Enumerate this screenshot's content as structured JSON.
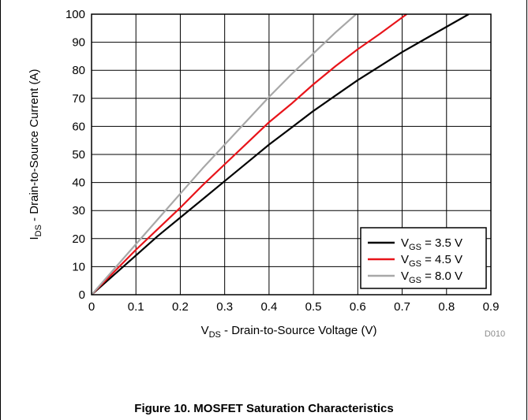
{
  "chart_data": {
    "type": "line",
    "xlabel": {
      "main": "V",
      "sub": "DS",
      "rest": " - Drain-to-Source Voltage (V)"
    },
    "ylabel": {
      "main": "I",
      "sub": "DS",
      "rest": " - Drain-to-Source Current (A)"
    },
    "xlim": [
      0,
      0.9
    ],
    "ylim": [
      0,
      100
    ],
    "xticks": [
      0,
      0.1,
      0.2,
      0.3,
      0.4,
      0.5,
      0.6,
      0.7,
      0.8,
      0.9
    ],
    "xtick_labels": [
      "0",
      "0.1",
      "0.2",
      "0.3",
      "0.4",
      "0.5",
      "0.6",
      "0.7",
      "0.8",
      "0.9"
    ],
    "yticks": [
      0,
      10,
      20,
      30,
      40,
      50,
      60,
      70,
      80,
      90,
      100
    ],
    "ytick_labels": [
      "0",
      "10",
      "20",
      "30",
      "40",
      "50",
      "60",
      "70",
      "80",
      "90",
      "100"
    ],
    "grid": true,
    "legend_position": "bottom-right",
    "series": [
      {
        "name": {
          "main": "V",
          "sub": "GS",
          "rest": " = 3.5 V"
        },
        "color": "#000000",
        "x": [
          0,
          0.05,
          0.1,
          0.15,
          0.2,
          0.25,
          0.3,
          0.35,
          0.4,
          0.45,
          0.5,
          0.55,
          0.6,
          0.65,
          0.7,
          0.75,
          0.8,
          0.85
        ],
        "y": [
          0,
          7,
          14,
          21,
          27.5,
          34,
          40.5,
          47,
          53.5,
          59.5,
          65.5,
          71,
          76.5,
          81.5,
          86.5,
          91,
          95.5,
          100
        ]
      },
      {
        "name": {
          "main": "V",
          "sub": "GS",
          "rest": " = 4.5 V"
        },
        "color": "#e8141a",
        "x": [
          0,
          0.05,
          0.1,
          0.15,
          0.2,
          0.25,
          0.3,
          0.35,
          0.4,
          0.45,
          0.5,
          0.55,
          0.6,
          0.65,
          0.71
        ],
        "y": [
          0,
          8,
          16,
          23.5,
          31,
          39,
          46.5,
          54,
          61.5,
          68,
          75,
          81.5,
          87.5,
          93,
          100
        ]
      },
      {
        "name": {
          "main": "V",
          "sub": "GS",
          "rest": " = 8.0 V"
        },
        "color": "#a8a8a8",
        "x": [
          0,
          0.05,
          0.1,
          0.15,
          0.2,
          0.25,
          0.3,
          0.35,
          0.4,
          0.45,
          0.5,
          0.55,
          0.6
        ],
        "y": [
          0,
          9,
          18,
          27,
          36,
          45,
          53.5,
          62,
          70.5,
          78.5,
          86,
          93.5,
          100.5
        ]
      }
    ],
    "annotation": "D010"
  },
  "caption": "Figure 10. MOSFET Saturation Characteristics"
}
